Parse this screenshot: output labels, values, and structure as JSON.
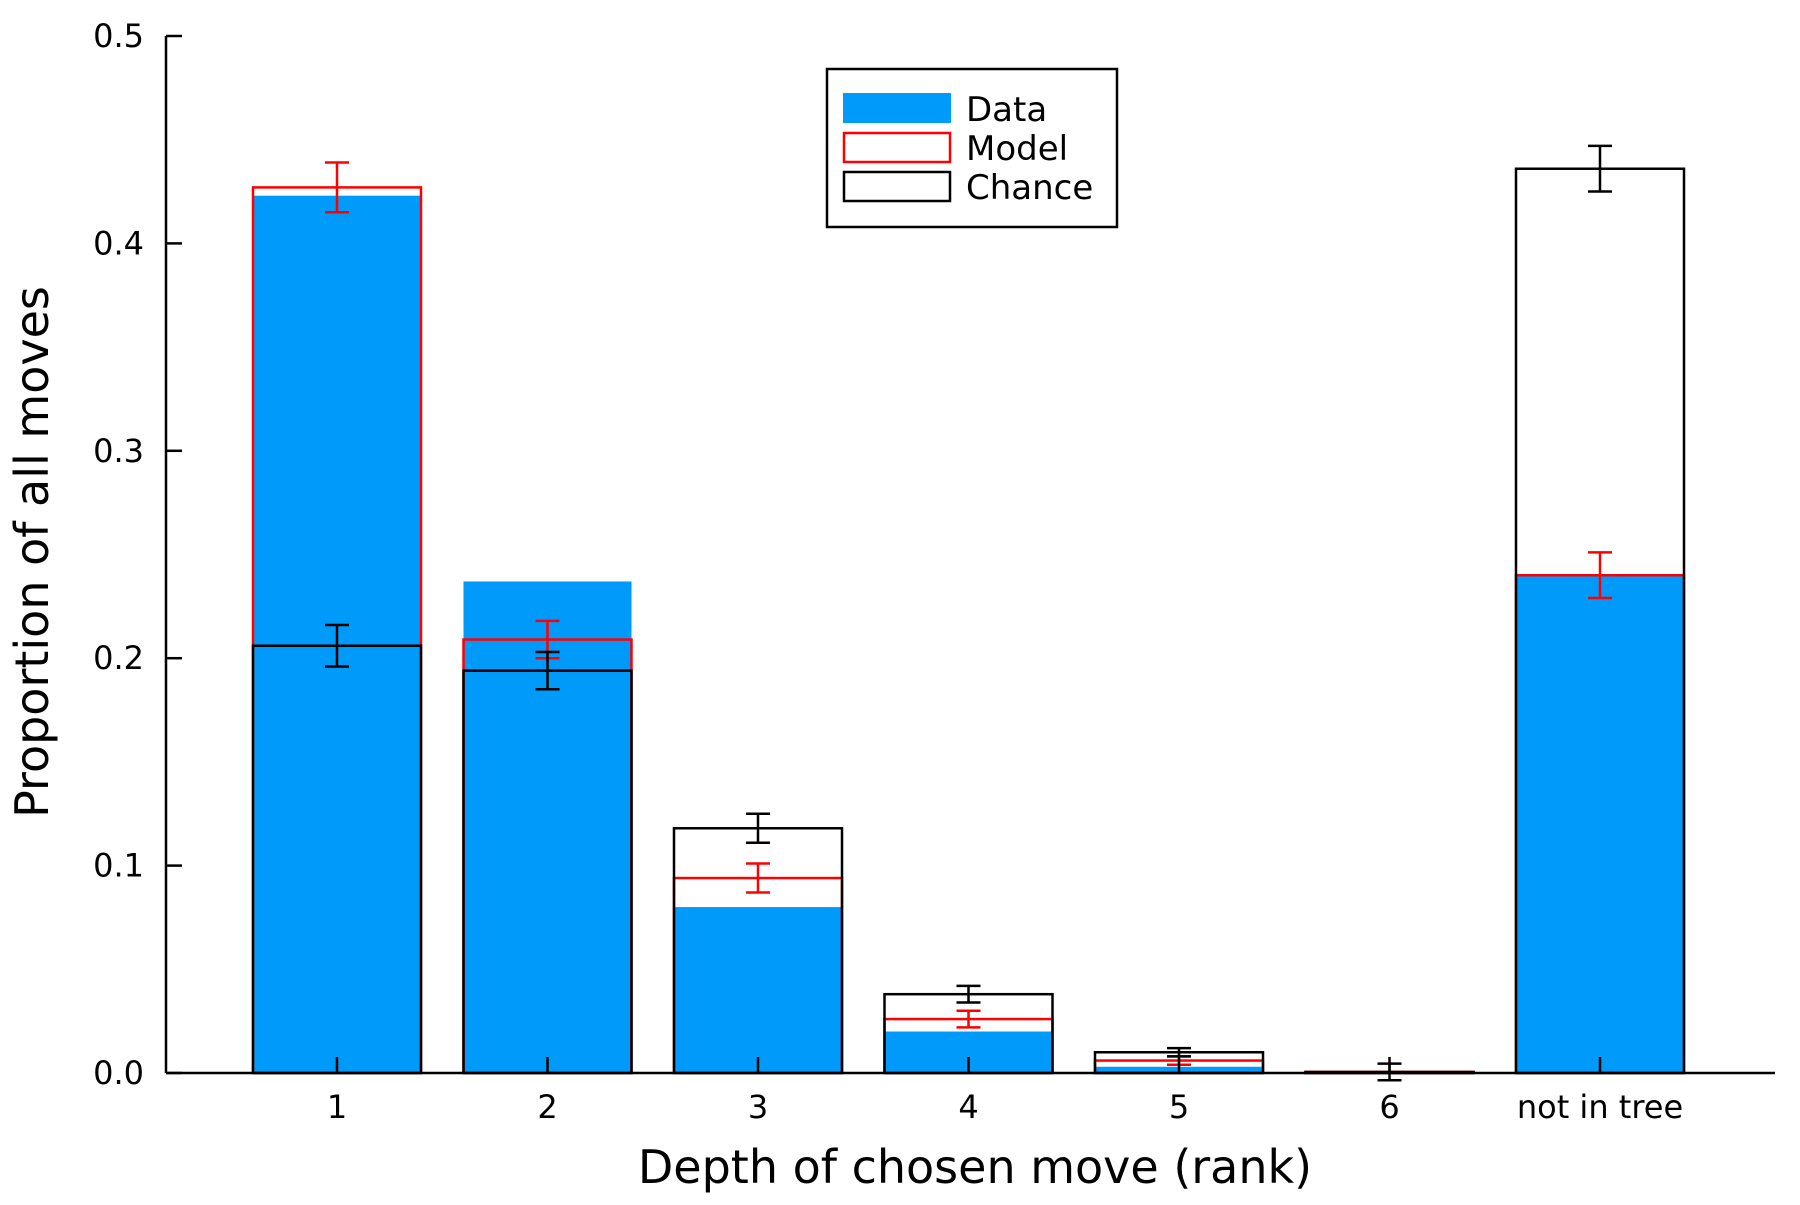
{
  "chart_data": {
    "type": "bar",
    "xlabel": "Depth of chosen move (rank)",
    "ylabel": "Proportion of all moves",
    "ylim": [
      0,
      0.5
    ],
    "yticks": [
      0.0,
      0.1,
      0.2,
      0.3,
      0.4,
      0.5
    ],
    "ytick_labels": [
      "0.0",
      "0.1",
      "0.2",
      "0.3",
      "0.4",
      "0.5"
    ],
    "categories": [
      "1",
      "2",
      "3",
      "4",
      "5",
      "6",
      "not in tree"
    ],
    "legend_position": "top-center",
    "grid": false,
    "series": [
      {
        "name": "Data",
        "style": "filled",
        "color": "#009AFA",
        "values": [
          0.423,
          0.237,
          0.08,
          0.02,
          0.003,
          0.0005,
          0.24
        ]
      },
      {
        "name": "Model",
        "style": "outline",
        "color": "#FF0000",
        "values": [
          0.427,
          0.209,
          0.094,
          0.026,
          0.006,
          0.0005,
          0.24
        ],
        "error": [
          0.012,
          0.009,
          0.007,
          0.004,
          0.002,
          0.0,
          0.011
        ]
      },
      {
        "name": "Chance",
        "style": "outline",
        "color": "#000000",
        "values": [
          0.206,
          0.194,
          0.118,
          0.038,
          0.01,
          0.0005,
          0.436
        ],
        "error": [
          0.01,
          0.009,
          0.007,
          0.004,
          0.002,
          0.004,
          0.011
        ]
      }
    ]
  }
}
